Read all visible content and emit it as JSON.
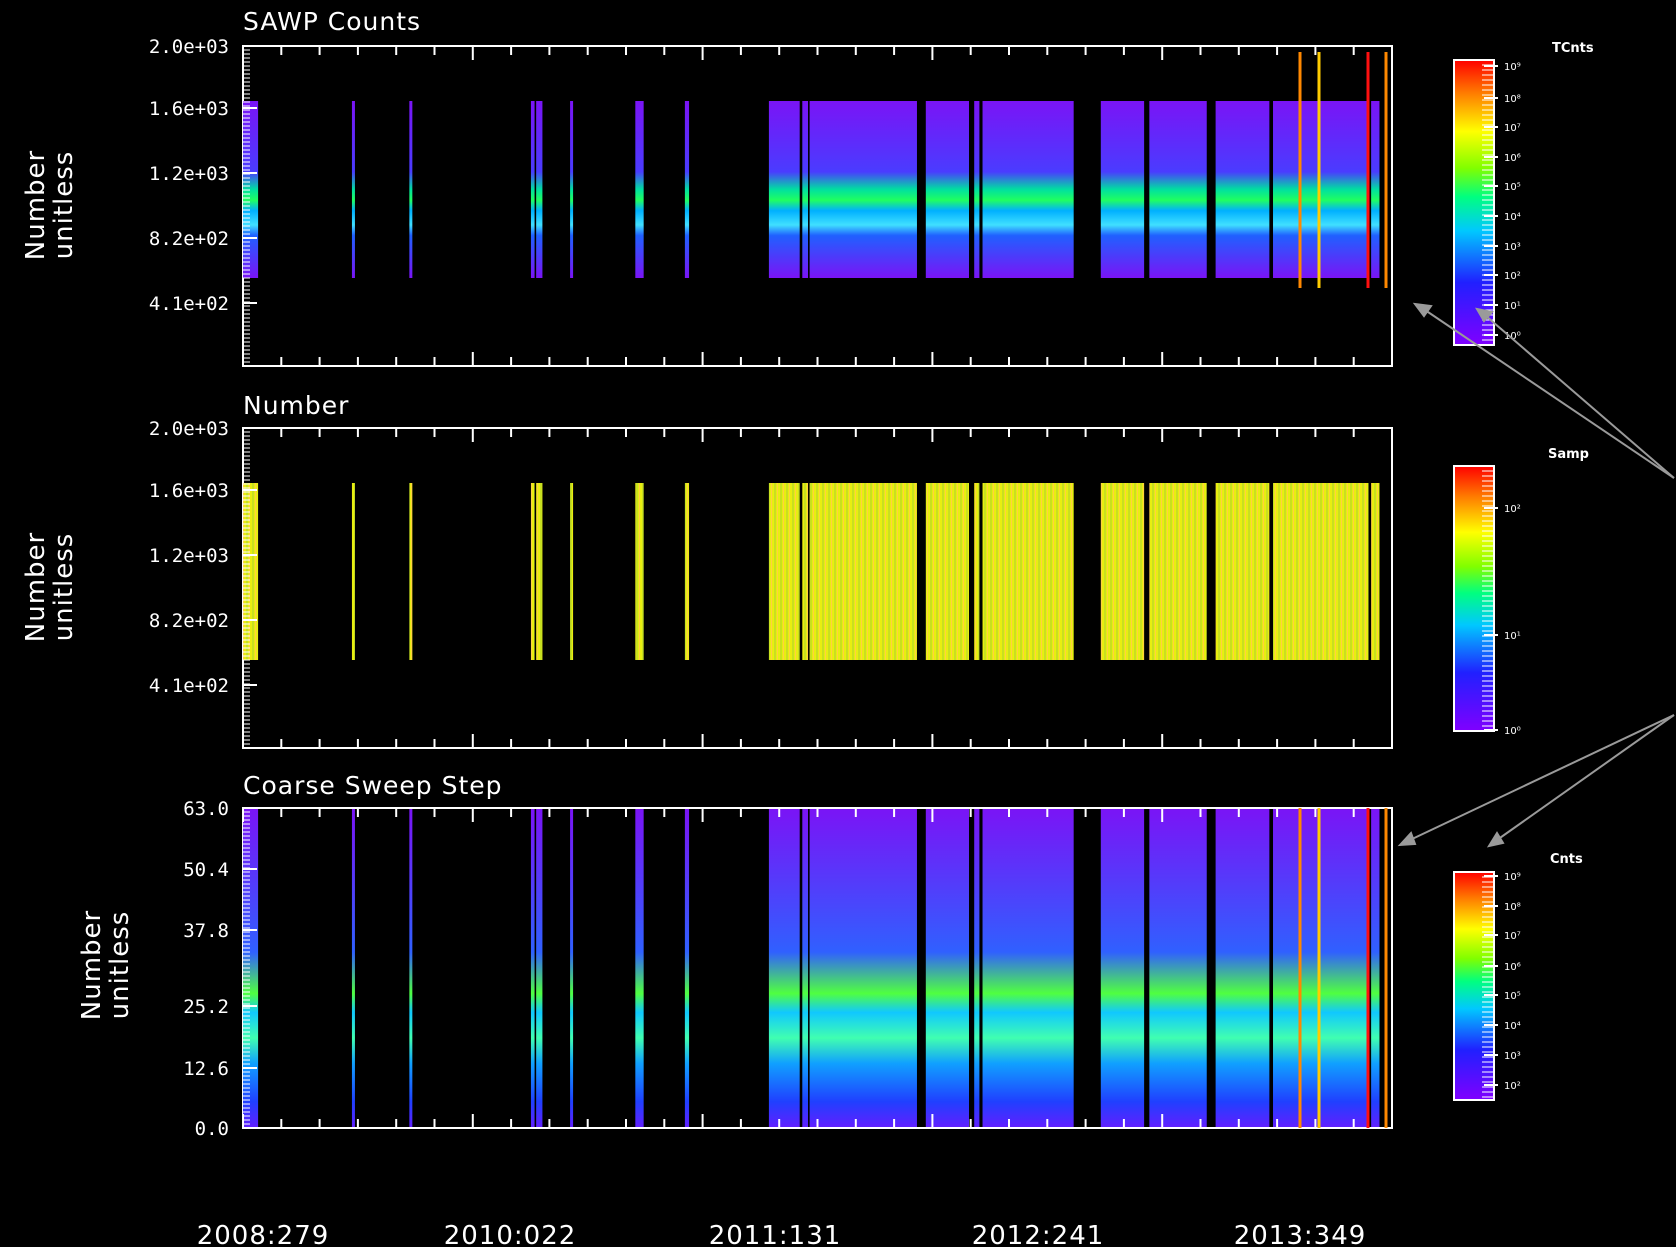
{
  "chart_data": [
    {
      "type": "heatmap",
      "title": "SAWP Counts",
      "ylabel_line1": "Number",
      "ylabel_line2": "unitless",
      "yticks": [
        "2.0e+03",
        "1.6e+03",
        "1.2e+03",
        "8.2e+02",
        "4.1e+02"
      ],
      "ylim": [
        0,
        2000
      ],
      "colorbar": {
        "label": "TCnts",
        "ticks": [
          "10⁹",
          "10⁸",
          "10⁷",
          "10⁶",
          "10⁵",
          "10⁴",
          "10³",
          "10²",
          "10¹",
          "10⁰"
        ]
      },
      "markers": [
        {
          "color": "#ff8800"
        },
        {
          "color": "#ffcc00"
        },
        {
          "color": "#ff1010"
        },
        {
          "color": "#ff8800"
        }
      ]
    },
    {
      "type": "heatmap",
      "title": "Number",
      "ylabel_line1": "Number",
      "ylabel_line2": "unitless",
      "yticks": [
        "2.0e+03",
        "1.6e+03",
        "1.2e+03",
        "8.2e+02",
        "4.1e+02"
      ],
      "ylim": [
        0,
        2000
      ],
      "colorbar": {
        "label": "Samp",
        "ticks": [
          "10²",
          "10¹",
          "10⁰"
        ]
      }
    },
    {
      "type": "heatmap",
      "title": "Coarse Sweep Step",
      "ylabel_line1": "Number",
      "ylabel_line2": "unitless",
      "yticks": [
        "63.0",
        "50.4",
        "37.8",
        "25.2",
        "12.6",
        "0.0"
      ],
      "ylim": [
        0,
        63
      ],
      "colorbar": {
        "label": "Cnts",
        "ticks": [
          "10⁹",
          "10⁸",
          "10⁷",
          "10⁶",
          "10⁵",
          "10⁴",
          "10³",
          "10²"
        ]
      },
      "markers": [
        {
          "color": "#ff8800"
        },
        {
          "color": "#ffcc00"
        },
        {
          "color": "#ff1010"
        },
        {
          "color": "#ff8800"
        }
      ]
    }
  ],
  "x_axis": {
    "ticks": [
      "2008:279",
      "2010:022",
      "2011:131",
      "2012:241",
      "2013:349"
    ]
  },
  "data_segments": [
    {
      "start": "2008:279",
      "end": "2008:308"
    },
    {
      "start": "2009:122",
      "end": "2009:124"
    },
    {
      "start": "2009:232",
      "end": "2009:235"
    },
    {
      "start": "2010:100",
      "end": "2010:107"
    },
    {
      "start": "2010:110",
      "end": "2010:122"
    },
    {
      "start": "2010:175",
      "end": "2010:180"
    },
    {
      "start": "2010:300",
      "end": "2010:316"
    },
    {
      "start": "2011:030",
      "end": "2011:038"
    },
    {
      "start": "2011:191",
      "end": "2011:250"
    },
    {
      "start": "2011:255",
      "end": "2011:266"
    },
    {
      "start": "2011:269",
      "end": "2012:110"
    },
    {
      "start": "2012:127",
      "end": "2012:210"
    },
    {
      "start": "2012:220",
      "end": "2012:230"
    },
    {
      "start": "2012:236",
      "end": "2013:045"
    },
    {
      "start": "2013:097",
      "end": "2013:180"
    },
    {
      "start": "2013:190",
      "end": "2013:300"
    },
    {
      "start": "2013:317",
      "end": "2014:055"
    },
    {
      "start": "2014:062",
      "end": "2014:245"
    },
    {
      "start": "2014:250",
      "end": "2014:266"
    }
  ],
  "colors": {
    "background": "#000000",
    "frame": "#ffffff",
    "arrow": "#9a9a9a"
  }
}
